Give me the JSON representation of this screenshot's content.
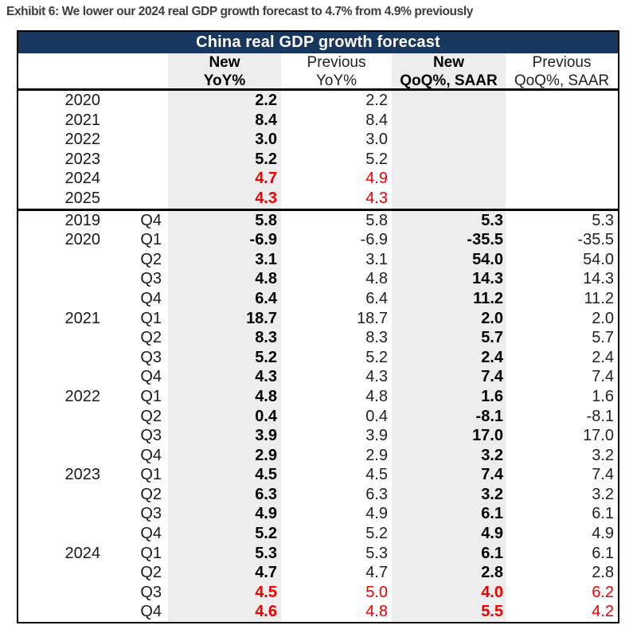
{
  "exhibit_title": "Exhibit 6: We lower our 2024 real GDP growth forecast to 4.7% from 4.9% previously",
  "table": {
    "title": "China real GDP growth forecast",
    "colors": {
      "header_bg": "#17375e",
      "header_text": "#ffffff",
      "shaded_column_bg": "#ededed",
      "revision_highlight": "#ee0000"
    },
    "columns": {
      "new_yoy": {
        "line1": "New",
        "line2": "YoY%"
      },
      "prev_yoy": {
        "line1": "Previous",
        "line2": "YoY%"
      },
      "new_qoq": {
        "line1": "New",
        "line2": "QoQ%, SAAR"
      },
      "prev_qoq": {
        "line1": "Previous",
        "line2": "QoQ%, SAAR"
      }
    },
    "annual_rows": [
      {
        "year": "2020",
        "new_yoy": "2.2",
        "prev_yoy": "2.2",
        "new_qoq": "",
        "prev_qoq": "",
        "red": false
      },
      {
        "year": "2021",
        "new_yoy": "8.4",
        "prev_yoy": "8.4",
        "new_qoq": "",
        "prev_qoq": "",
        "red": false
      },
      {
        "year": "2022",
        "new_yoy": "3.0",
        "prev_yoy": "3.0",
        "new_qoq": "",
        "prev_qoq": "",
        "red": false
      },
      {
        "year": "2023",
        "new_yoy": "5.2",
        "prev_yoy": "5.2",
        "new_qoq": "",
        "prev_qoq": "",
        "red": false
      },
      {
        "year": "2024",
        "new_yoy": "4.7",
        "prev_yoy": "4.9",
        "new_qoq": "",
        "prev_qoq": "",
        "red": true
      },
      {
        "year": "2025",
        "new_yoy": "4.3",
        "prev_yoy": "4.3",
        "new_qoq": "",
        "prev_qoq": "",
        "red": true
      }
    ],
    "quarterly_rows": [
      {
        "year": "2019",
        "quarter": "Q4",
        "new_yoy": "5.8",
        "prev_yoy": "5.8",
        "new_qoq": "5.3",
        "prev_qoq": "5.3",
        "red": false
      },
      {
        "year": "2020",
        "quarter": "Q1",
        "new_yoy": "-6.9",
        "prev_yoy": "-6.9",
        "new_qoq": "-35.5",
        "prev_qoq": "-35.5",
        "red": false
      },
      {
        "year": "",
        "quarter": "Q2",
        "new_yoy": "3.1",
        "prev_yoy": "3.1",
        "new_qoq": "54.0",
        "prev_qoq": "54.0",
        "red": false
      },
      {
        "year": "",
        "quarter": "Q3",
        "new_yoy": "4.8",
        "prev_yoy": "4.8",
        "new_qoq": "14.3",
        "prev_qoq": "14.3",
        "red": false
      },
      {
        "year": "",
        "quarter": "Q4",
        "new_yoy": "6.4",
        "prev_yoy": "6.4",
        "new_qoq": "11.2",
        "prev_qoq": "11.2",
        "red": false
      },
      {
        "year": "2021",
        "quarter": "Q1",
        "new_yoy": "18.7",
        "prev_yoy": "18.7",
        "new_qoq": "2.0",
        "prev_qoq": "2.0",
        "red": false
      },
      {
        "year": "",
        "quarter": "Q2",
        "new_yoy": "8.3",
        "prev_yoy": "8.3",
        "new_qoq": "5.7",
        "prev_qoq": "5.7",
        "red": false
      },
      {
        "year": "",
        "quarter": "Q3",
        "new_yoy": "5.2",
        "prev_yoy": "5.2",
        "new_qoq": "2.4",
        "prev_qoq": "2.4",
        "red": false
      },
      {
        "year": "",
        "quarter": "Q4",
        "new_yoy": "4.3",
        "prev_yoy": "4.3",
        "new_qoq": "7.4",
        "prev_qoq": "7.4",
        "red": false
      },
      {
        "year": "2022",
        "quarter": "Q1",
        "new_yoy": "4.8",
        "prev_yoy": "4.8",
        "new_qoq": "1.6",
        "prev_qoq": "1.6",
        "red": false
      },
      {
        "year": "",
        "quarter": "Q2",
        "new_yoy": "0.4",
        "prev_yoy": "0.4",
        "new_qoq": "-8.1",
        "prev_qoq": "-8.1",
        "red": false
      },
      {
        "year": "",
        "quarter": "Q3",
        "new_yoy": "3.9",
        "prev_yoy": "3.9",
        "new_qoq": "17.0",
        "prev_qoq": "17.0",
        "red": false
      },
      {
        "year": "",
        "quarter": "Q4",
        "new_yoy": "2.9",
        "prev_yoy": "2.9",
        "new_qoq": "3.2",
        "prev_qoq": "3.2",
        "red": false
      },
      {
        "year": "2023",
        "quarter": "Q1",
        "new_yoy": "4.5",
        "prev_yoy": "4.5",
        "new_qoq": "7.4",
        "prev_qoq": "7.4",
        "red": false
      },
      {
        "year": "",
        "quarter": "Q2",
        "new_yoy": "6.3",
        "prev_yoy": "6.3",
        "new_qoq": "3.2",
        "prev_qoq": "3.2",
        "red": false
      },
      {
        "year": "",
        "quarter": "Q3",
        "new_yoy": "4.9",
        "prev_yoy": "4.9",
        "new_qoq": "6.1",
        "prev_qoq": "6.1",
        "red": false
      },
      {
        "year": "",
        "quarter": "Q4",
        "new_yoy": "5.2",
        "prev_yoy": "5.2",
        "new_qoq": "4.9",
        "prev_qoq": "4.9",
        "red": false
      },
      {
        "year": "2024",
        "quarter": "Q1",
        "new_yoy": "5.3",
        "prev_yoy": "5.3",
        "new_qoq": "6.1",
        "prev_qoq": "6.1",
        "red": false
      },
      {
        "year": "",
        "quarter": "Q2",
        "new_yoy": "4.7",
        "prev_yoy": "4.7",
        "new_qoq": "2.8",
        "prev_qoq": "2.8",
        "red": false
      },
      {
        "year": "",
        "quarter": "Q3",
        "new_yoy": "4.5",
        "prev_yoy": "5.0",
        "new_qoq": "4.0",
        "prev_qoq": "6.2",
        "red": true
      },
      {
        "year": "",
        "quarter": "Q4",
        "new_yoy": "4.6",
        "prev_yoy": "4.8",
        "new_qoq": "5.5",
        "prev_qoq": "4.2",
        "red": true
      }
    ]
  }
}
